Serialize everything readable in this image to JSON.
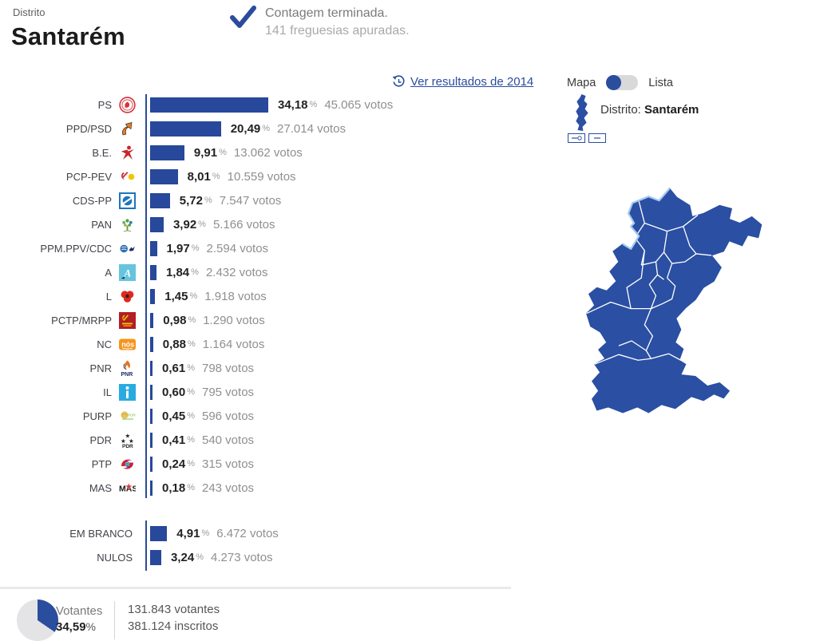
{
  "header": {
    "district_label": "Distrito",
    "district_name": "Santarém",
    "status_line1": "Contagem terminada.",
    "status_line2": "141 freguesias apuradas."
  },
  "results_link": {
    "label": "Ver resultados de 2014",
    "icon": "history-icon"
  },
  "view_toggle": {
    "left_label": "Mapa",
    "right_label": "Lista",
    "selected": "Mapa"
  },
  "map_panel": {
    "region_label": "Distrito:",
    "region_name": "Santarém",
    "mini_map_icon": "portugal-map-icon",
    "button_icons": [
      "magnifier-plus-icon",
      "magnifier-minus-icon"
    ]
  },
  "ui": {
    "percent_symbol": "%"
  },
  "parties": [
    {
      "name": "PS",
      "icon": "ps-icon",
      "pct": "34,18",
      "pct_value": 34.18,
      "votes": "45.065 votos"
    },
    {
      "name": "PPD/PSD",
      "icon": "ppd-psd-icon",
      "pct": "20,49",
      "pct_value": 20.49,
      "votes": "27.014 votos"
    },
    {
      "name": "B.E.",
      "icon": "be-icon",
      "pct": "9,91",
      "pct_value": 9.91,
      "votes": "13.062 votos"
    },
    {
      "name": "PCP-PEV",
      "icon": "pcp-pev-icon",
      "pct": "8,01",
      "pct_value": 8.01,
      "votes": "10.559 votos"
    },
    {
      "name": "CDS-PP",
      "icon": "cds-pp-icon",
      "pct": "5,72",
      "pct_value": 5.72,
      "votes": "7.547 votos"
    },
    {
      "name": "PAN",
      "icon": "pan-icon",
      "pct": "3,92",
      "pct_value": 3.92,
      "votes": "5.166 votos"
    },
    {
      "name": "PPM.PPV/CDC",
      "icon": "ppm-ppv-cdc-icon",
      "pct": "1,97",
      "pct_value": 1.97,
      "votes": "2.594 votos"
    },
    {
      "name": "A",
      "icon": "a-icon",
      "pct": "1,84",
      "pct_value": 1.84,
      "votes": "2.432 votos"
    },
    {
      "name": "L",
      "icon": "l-icon",
      "pct": "1,45",
      "pct_value": 1.45,
      "votes": "1.918 votos"
    },
    {
      "name": "PCTP/MRPP",
      "icon": "pctp-mrpp-icon",
      "pct": "0,98",
      "pct_value": 0.98,
      "votes": "1.290 votos"
    },
    {
      "name": "NC",
      "icon": "nc-icon",
      "pct": "0,88",
      "pct_value": 0.88,
      "votes": "1.164 votos"
    },
    {
      "name": "PNR",
      "icon": "pnr-icon",
      "pct": "0,61",
      "pct_value": 0.61,
      "votes": "798 votos"
    },
    {
      "name": "IL",
      "icon": "il-icon",
      "pct": "0,60",
      "pct_value": 0.6,
      "votes": "795 votos"
    },
    {
      "name": "PURP",
      "icon": "purp-icon",
      "pct": "0,45",
      "pct_value": 0.45,
      "votes": "596 votos"
    },
    {
      "name": "PDR",
      "icon": "pdr-icon",
      "pct": "0,41",
      "pct_value": 0.41,
      "votes": "540 votos"
    },
    {
      "name": "PTP",
      "icon": "ptp-icon",
      "pct": "0,24",
      "pct_value": 0.24,
      "votes": "315 votos"
    },
    {
      "name": "MAS",
      "icon": "mas-icon",
      "pct": "0,18",
      "pct_value": 0.18,
      "votes": "243 votos"
    }
  ],
  "blank_null": [
    {
      "name": "EM BRANCO",
      "pct": "4,91",
      "pct_value": 4.91,
      "votes": "6.472 votos"
    },
    {
      "name": "NULOS",
      "pct": "3,24",
      "pct_value": 3.24,
      "votes": "4.273 votos"
    }
  ],
  "footer": {
    "turnout_label": "Votantes",
    "turnout_pct": "34,59",
    "turnout_value": 34.59,
    "total_voters": "131.843 votantes",
    "total_registered": "381.124 inscritos"
  },
  "colors": {
    "bar": "#27489b",
    "map_fill": "#2a4fa3",
    "accent": "#2a4d9e",
    "pie_rest": "#e4e4e6"
  }
}
